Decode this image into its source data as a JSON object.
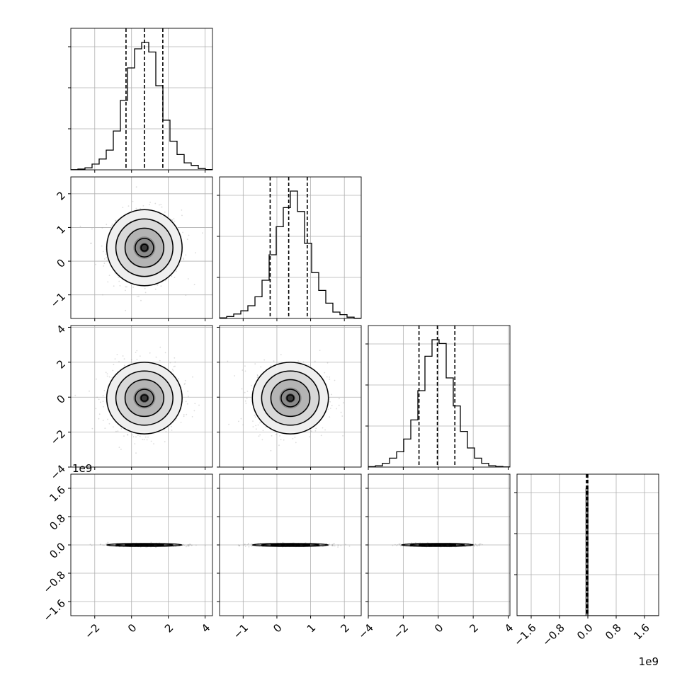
{
  "chart_data": {
    "type": "corner",
    "n_params": 4,
    "colors": {
      "ink": "#000000",
      "grid": "#b0b0b0",
      "frame": "#000000",
      "scatter": "#9a9a9a"
    },
    "quantile_lines_dashed": true,
    "grid": true,
    "parameters": [
      {
        "range": [
          -3.3,
          4.4
        ],
        "ticks": [
          -2,
          0,
          2,
          4
        ],
        "tick_labels": [
          "−2",
          "0",
          "2",
          "4"
        ],
        "quantiles": [
          -0.3,
          0.7,
          1.7
        ],
        "hist_bins": [
          0.001,
          0.006,
          0.016,
          0.045,
          0.085,
          0.155,
          0.305,
          0.545,
          0.8,
          0.95,
          1.0,
          0.925,
          0.66,
          0.39,
          0.225,
          0.12,
          0.055,
          0.035,
          0.01,
          0.002
        ],
        "offset_text": ""
      },
      {
        "range": [
          -1.7,
          2.5
        ],
        "ticks": [
          -1,
          0,
          1,
          2
        ],
        "tick_labels": [
          "−1",
          "0",
          "1",
          "2"
        ],
        "quantiles": [
          -0.2,
          0.35,
          0.9
        ],
        "hist_bins": [
          0.005,
          0.015,
          0.035,
          0.06,
          0.1,
          0.17,
          0.3,
          0.5,
          0.72,
          0.87,
          1.0,
          0.84,
          0.59,
          0.36,
          0.22,
          0.12,
          0.05,
          0.03,
          0.01,
          0.002
        ],
        "offset_text": ""
      },
      {
        "range": [
          -4.0,
          4.1
        ],
        "ticks": [
          -4,
          -2,
          0,
          2,
          4
        ],
        "tick_labels": [
          "−4",
          "−2",
          "0",
          "2",
          "4"
        ],
        "quantiles": [
          -1.1,
          -0.05,
          0.95
        ],
        "hist_bins": [
          0.003,
          0.01,
          0.03,
          0.07,
          0.12,
          0.22,
          0.37,
          0.6,
          0.87,
          1.0,
          0.97,
          0.7,
          0.48,
          0.28,
          0.15,
          0.07,
          0.03,
          0.01,
          0.005,
          0.001
        ],
        "offset_text": ""
      },
      {
        "range": [
          -2.0,
          2.0
        ],
        "ticks": [
          -1.6,
          -0.8,
          0.0,
          0.8,
          1.6
        ],
        "tick_labels": [
          "−1.6",
          "−0.8",
          "0.0",
          "0.8",
          "1.6"
        ],
        "quantiles": [
          -0.04,
          -0.02,
          0.0
        ],
        "hist_bins": [
          0.0,
          0.0,
          0.0,
          0.0,
          0.0,
          0.0,
          0.0,
          0.0,
          0.0,
          0.0,
          0.0,
          0.0,
          0.0,
          0.0,
          0.0,
          0.0,
          0.0,
          0.0,
          0.0,
          0.0,
          0.0,
          0.0,
          0.0,
          0.0,
          0.0,
          0.0,
          0.0,
          0.0,
          0.0,
          0.0,
          0.0,
          0.0,
          0.0,
          0.0,
          0.0,
          0.0,
          0.0,
          0.0,
          0.0,
          1.0,
          0.0,
          0.0,
          0.0,
          0.0,
          0.0,
          0.0,
          0.0,
          0.0,
          0.0,
          0.0,
          0.0,
          0.0,
          0.0,
          0.0,
          0.0,
          0.0,
          0.0,
          0.0,
          0.0,
          0.0,
          0.0,
          0.0,
          0.0,
          0.0,
          0.0,
          0.0,
          0.0,
          0.0,
          0.0,
          0.0,
          0.0,
          0.0,
          0.0,
          0.0,
          0.0,
          0.0,
          0.0,
          0.0,
          0.0,
          0.0
        ],
        "offset_text": "1e9"
      }
    ],
    "centers": [
      0.7,
      0.4,
      -0.05,
      0.0
    ],
    "spreads": [
      1.0,
      0.55,
      1.0,
      0.02
    ]
  }
}
